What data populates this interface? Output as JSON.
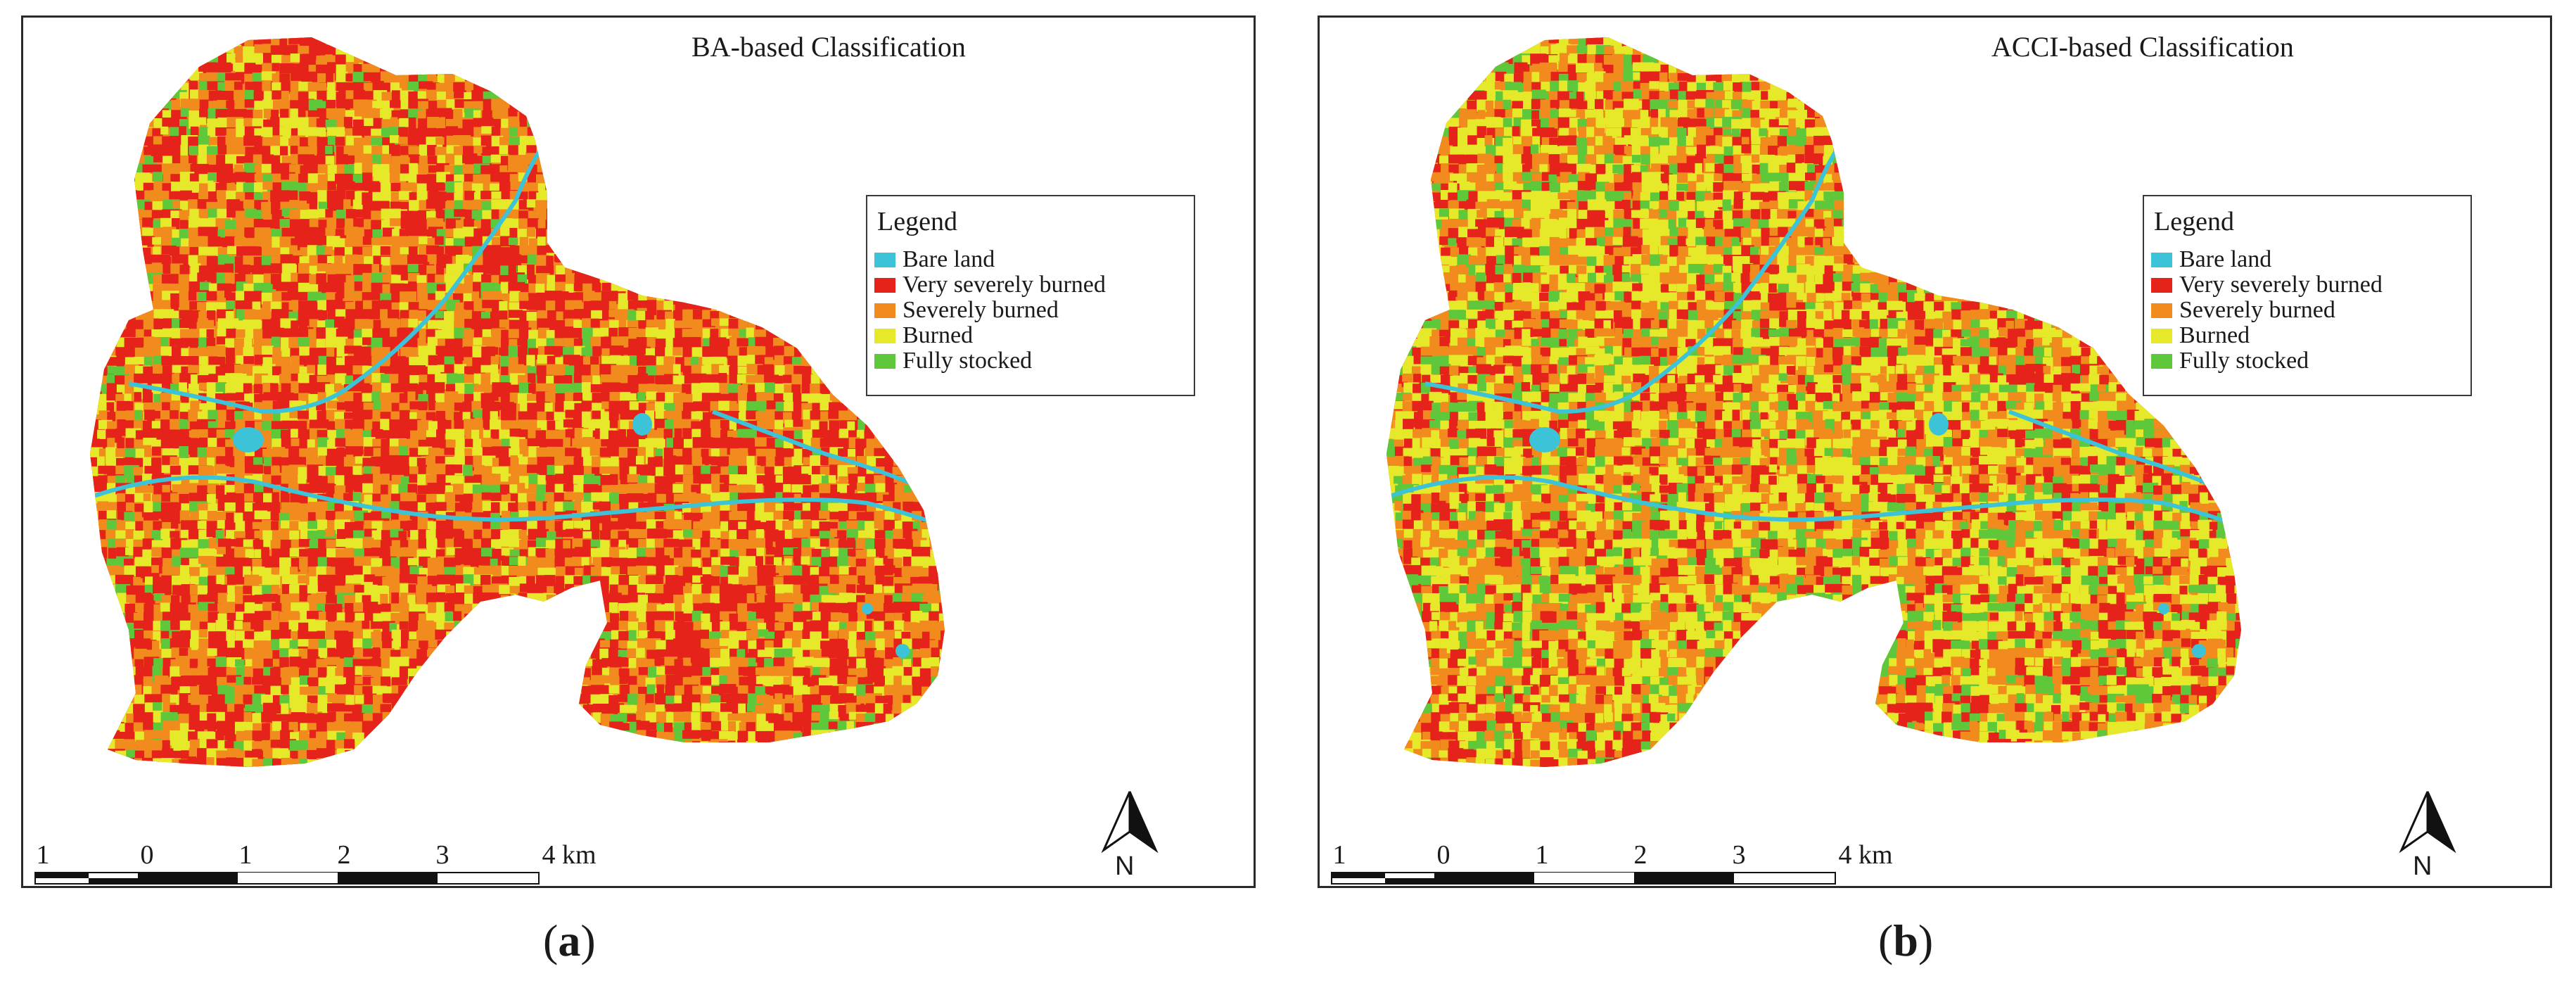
{
  "panels": [
    {
      "id": "a",
      "title": "BA-based Classification",
      "caption_open": "(",
      "caption_letter": "a",
      "caption_close": ")",
      "mix": [
        0.05,
        0.4,
        0.28,
        0.2,
        0.07
      ]
    },
    {
      "id": "b",
      "title": "ACCI-based Classification",
      "caption_open": "(",
      "caption_letter": "b",
      "caption_close": ")",
      "mix": [
        0.05,
        0.22,
        0.26,
        0.33,
        0.14
      ]
    }
  ],
  "legend": {
    "title": "Legend",
    "items": [
      {
        "label": "Bare land",
        "color": "#3cc3d8"
      },
      {
        "label": "Very severely burned",
        "color": "#e5231b"
      },
      {
        "label": "Severely burned",
        "color": "#f28b1d"
      },
      {
        "label": "Burned",
        "color": "#e6e82a"
      },
      {
        "label": "Fully stocked",
        "color": "#5fc83a"
      }
    ]
  },
  "north_arrow": {
    "label": "N"
  },
  "scale": {
    "ticks": [
      "1",
      "0",
      "1",
      "2",
      "3",
      "4 km"
    ]
  }
}
